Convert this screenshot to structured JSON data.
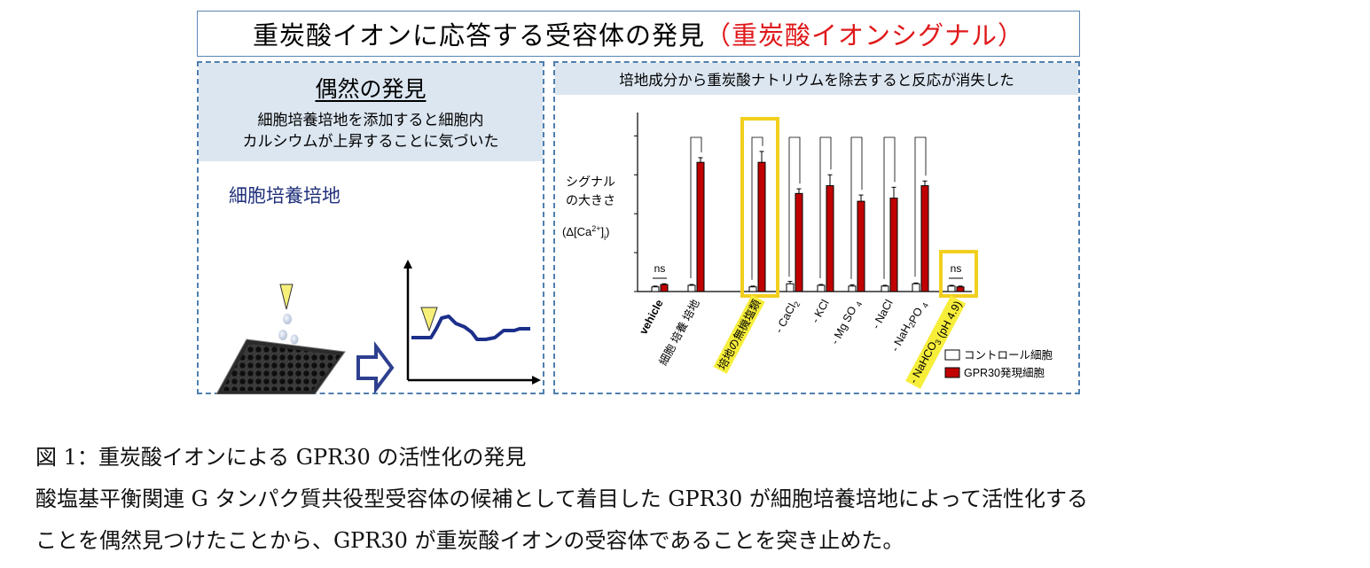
{
  "title": {
    "main": "重炭酸イオンに応答する受容体の発見",
    "highlight": "（重炭酸イオンシグナル）"
  },
  "left_panel": {
    "title": "偶然の発見",
    "desc_line1": "細胞培養培地を添加すると細胞内",
    "desc_line2": "カルシウムが上昇することに気づいた",
    "medium_label": "細胞培養培地"
  },
  "right_panel": {
    "header": "培地成分から重炭酸ナトリウムを除去すると反応が消失した",
    "ylabel_line1": "シグナル",
    "ylabel_line2": "の大きさ",
    "ylabel_line3_pre": "(Δ[Ca",
    "ylabel_sup": "2+",
    "ylabel_post": "]",
    "ylabel_sub": "i",
    "ylabel_end": ")"
  },
  "chart_data": {
    "type": "bar",
    "categories": [
      "vehicle",
      "細胞培養培地",
      "培地の無機塩類",
      "- CaCl2",
      "- KCl",
      "- MgSO4",
      "- NaCl",
      "- NaH2PO4",
      "- NaHCO3 (pH 4.9)"
    ],
    "category_labels": [
      {
        "text": "vehicle"
      },
      {
        "text": "細胞 培養 培地"
      },
      {
        "text": "培地の無機塩類",
        "highlight": true
      },
      {
        "text": "- CaCl",
        "sub": "2"
      },
      {
        "text": "- KCl"
      },
      {
        "text": "- Mg SO ",
        "sub": "4"
      },
      {
        "text": "- NaCl"
      },
      {
        "text": "- NaH",
        "sub": "2",
        "post": "PO ",
        "sub2": "4"
      },
      {
        "text": "- NaHCO",
        "sub": "3",
        "post": " (pH 4.9)",
        "highlight": true
      }
    ],
    "series": [
      {
        "name": "コントロール細胞",
        "color": "#ffffff",
        "values": [
          3,
          4,
          3,
          5,
          4,
          3.5,
          3.5,
          5,
          3.5
        ],
        "errors": [
          0.5,
          0.5,
          0.5,
          1.5,
          0.5,
          0.8,
          0.5,
          0.5,
          0.5
        ]
      },
      {
        "name": "GPR30発現細胞",
        "color": "#c00000",
        "values": [
          4.5,
          83,
          83,
          63,
          68,
          58,
          60,
          68,
          3
        ],
        "errors": [
          0.5,
          3,
          7,
          3,
          7,
          4,
          7,
          3,
          0.5
        ]
      }
    ],
    "significance": [
      {
        "between": [
          0,
          0
        ],
        "label": "ns"
      },
      {
        "between": [
          8,
          8
        ],
        "label": "ns"
      }
    ],
    "brackets": [
      1,
      2,
      3,
      4,
      5,
      6,
      7
    ],
    "ylim": [
      0,
      115
    ],
    "legend_position": "bottom-right"
  },
  "caption": {
    "line1": "図 1：重炭酸イオンによる GPR30 の活性化の発見",
    "line2": "酸塩基平衡関連 G タンパク質共役型受容体の候補として着目した GPR30 が細胞培養培地によって活性化する",
    "line3": "ことを偶然見つけたことから、GPR30 が重炭酸イオンの受容体であることを突き止めた。"
  },
  "colors": {
    "accent_red": "#e0181a",
    "bar_red": "#c00000",
    "highlight_yellow": "#f7ee3a",
    "box_yellow": "#f2cf1d",
    "panel_blue": "#dce6f1"
  }
}
